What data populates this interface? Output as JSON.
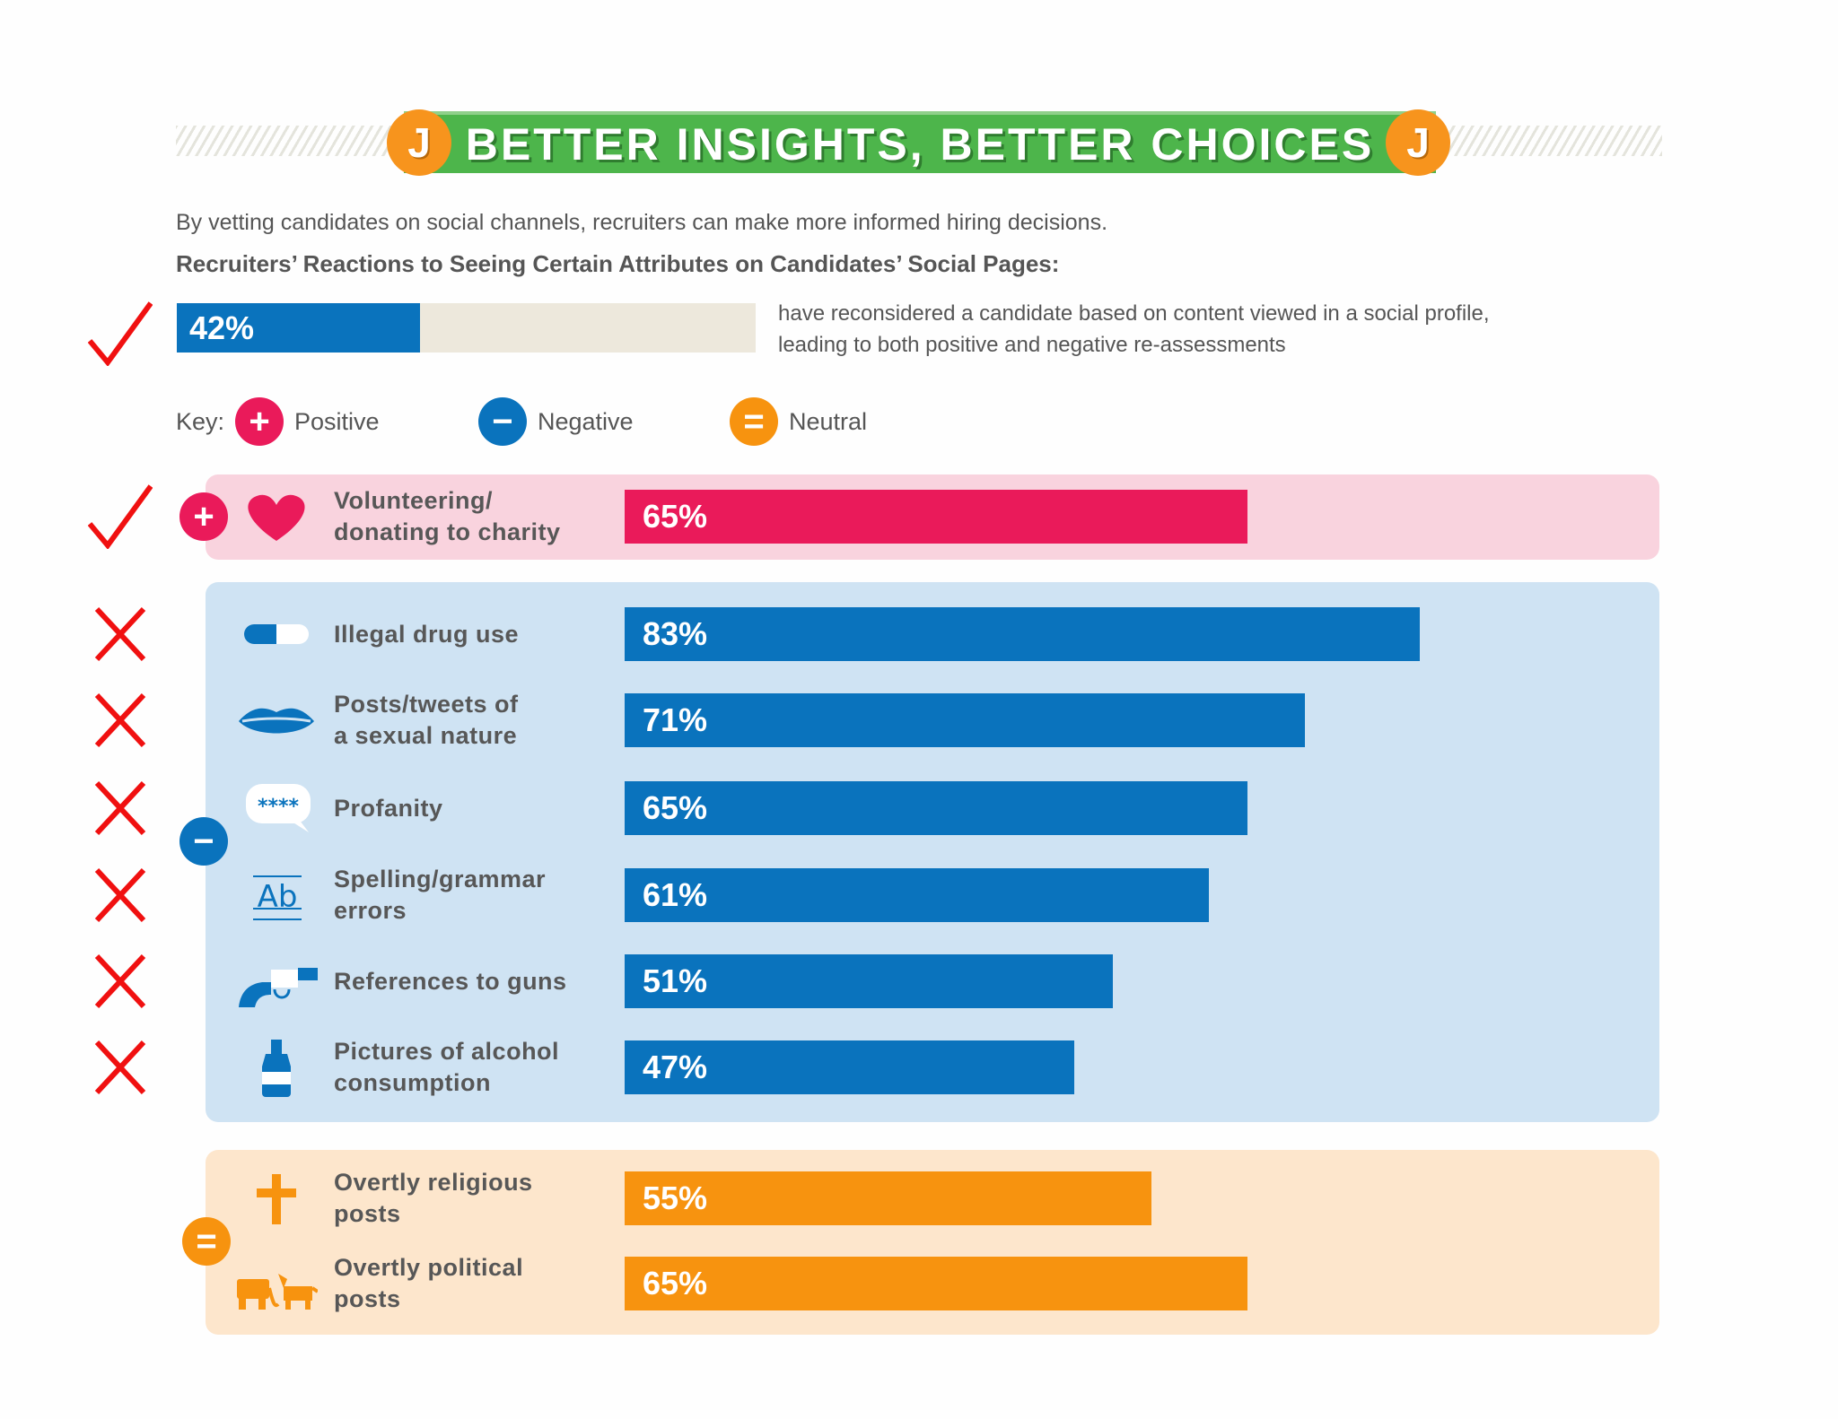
{
  "header": {
    "title": "BETTER INSIGHTS, BETTER CHOICES",
    "logo_letter": "J"
  },
  "intro": "By vetting candidates on social channels, recruiters can make more informed hiring decisions.",
  "subheading": "Recruiters’ Reactions to Seeing Certain Attributes on Candidates’ Social Pages:",
  "summary": {
    "value": 42,
    "label": "42%",
    "text_line1": "have reconsidered a candidate based on content viewed in a social profile,",
    "text_line2": "leading to both positive and negative re-assessments"
  },
  "key": {
    "label": "Key:",
    "positive": "Positive",
    "negative": "Negative",
    "neutral": "Neutral"
  },
  "colors": {
    "positive": "#ea1a5a",
    "negative": "#0a73bd",
    "neutral": "#f7930f",
    "positive_panel": "#f9d3de",
    "negative_panel": "#cfe3f3",
    "neutral_panel": "#fde6cc",
    "header": "#4db54b",
    "track": "#ede8dc",
    "check": "#f01010"
  },
  "chart_data": {
    "type": "bar",
    "orientation": "horizontal",
    "xlim": [
      0,
      100
    ],
    "groups": [
      {
        "name": "Positive",
        "items": [
          {
            "line1": "Volunteering/",
            "line2": "donating to charity",
            "value": 65,
            "label": "65%",
            "icon": "heart-icon"
          }
        ]
      },
      {
        "name": "Negative",
        "items": [
          {
            "line1": "Illegal drug use",
            "line2": "",
            "value": 83,
            "label": "83%",
            "icon": "pill-icon"
          },
          {
            "line1": "Posts/tweets of",
            "line2": "a sexual nature",
            "value": 71,
            "label": "71%",
            "icon": "lips-icon"
          },
          {
            "line1": "Profanity",
            "line2": "",
            "value": 65,
            "label": "65%",
            "icon": "speech-bubble-icon"
          },
          {
            "line1": "Spelling/grammar",
            "line2": "errors",
            "value": 61,
            "label": "61%",
            "icon": "text-ab-icon"
          },
          {
            "line1": "References to guns",
            "line2": "",
            "value": 51,
            "label": "51%",
            "icon": "gun-icon"
          },
          {
            "line1": "Pictures of alcohol",
            "line2": "consumption",
            "value": 47,
            "label": "47%",
            "icon": "bottle-icon"
          }
        ]
      },
      {
        "name": "Neutral",
        "items": [
          {
            "line1": "Overtly religious",
            "line2": "posts",
            "value": 55,
            "label": "55%",
            "icon": "cross-icon"
          },
          {
            "line1": "Overtly political",
            "line2": "posts",
            "value": 65,
            "label": "65%",
            "icon": "elephant-donkey-icon"
          }
        ]
      }
    ]
  }
}
